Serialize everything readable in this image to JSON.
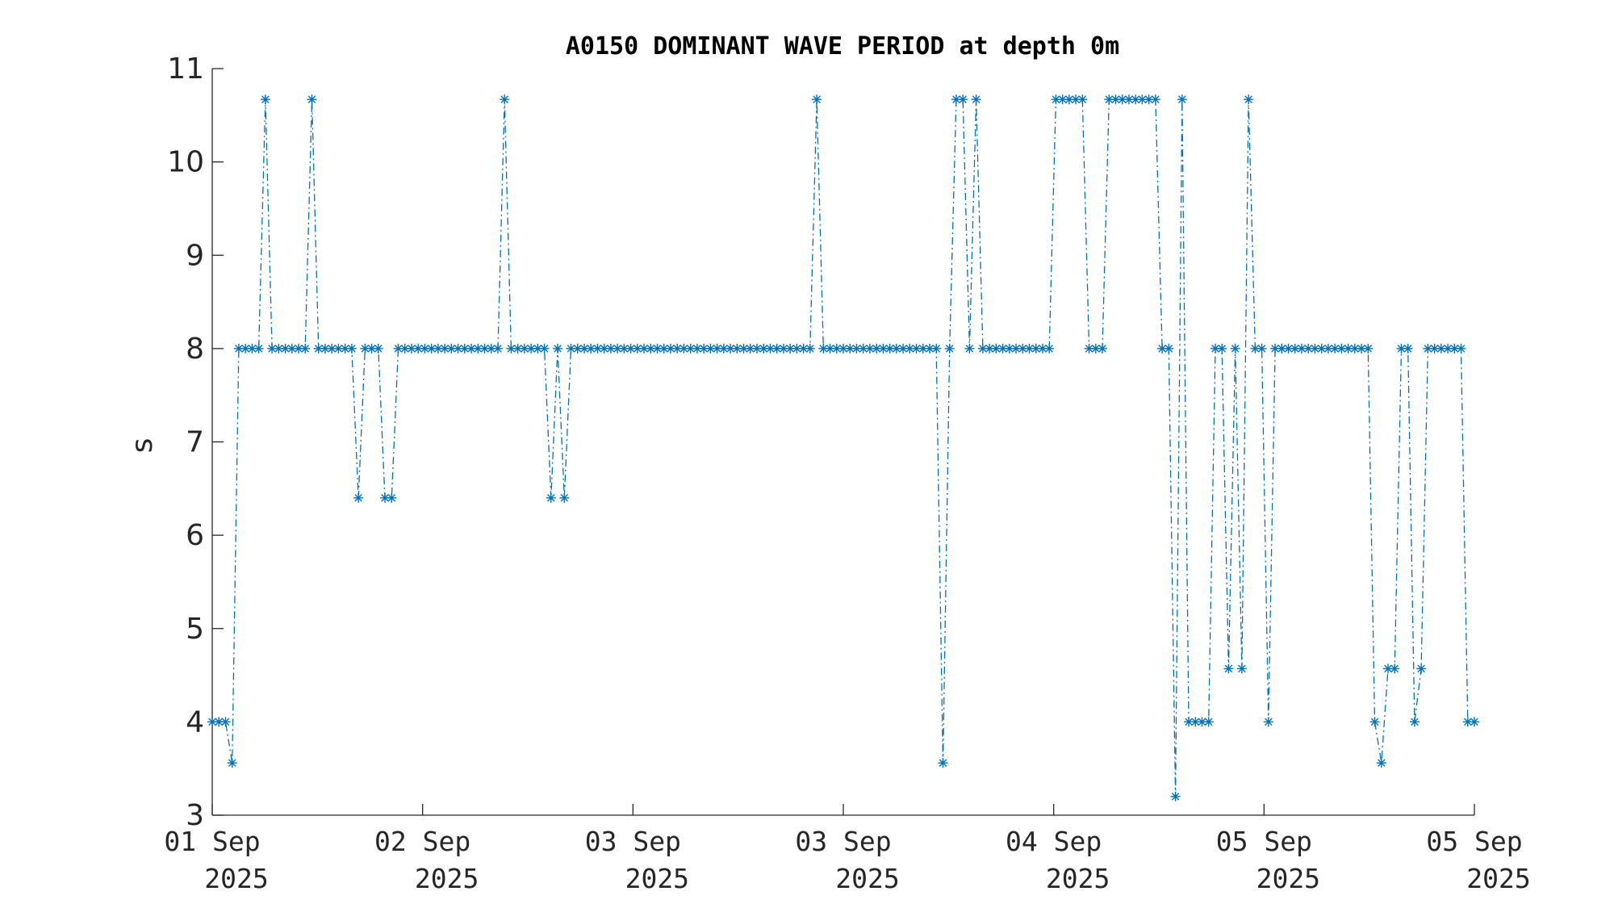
{
  "chart_data": {
    "type": "line",
    "title": "A0150 DOMINANT WAVE PERIOD at depth 0m",
    "ylabel": "s",
    "xlabel": "",
    "ylim": [
      3,
      11
    ],
    "yticks": [
      "3",
      "4",
      "5",
      "6",
      "7",
      "8",
      "9",
      "10",
      "11"
    ],
    "xlim_days": [
      0,
      6
    ],
    "xticks": [
      {
        "date": "01 Sep",
        "year": "2025"
      },
      {
        "date": "02 Sep",
        "year": "2025"
      },
      {
        "date": "03 Sep",
        "year": "2025"
      },
      {
        "date": "03 Sep",
        "year": "2025"
      },
      {
        "date": "04 Sep",
        "year": "2025"
      },
      {
        "date": "05 Sep",
        "year": "2025"
      },
      {
        "date": "05 Sep",
        "year": "2025"
      }
    ],
    "series_color": "#0072bd",
    "grid": false,
    "series": [
      {
        "line_style": "dash-dot",
        "marker": "asterisk",
        "values": [
          4,
          4,
          4,
          3.56,
          8,
          8,
          8,
          8,
          10.67,
          8,
          8,
          8,
          8,
          8,
          8,
          10.67,
          8,
          8,
          8,
          8,
          8,
          8,
          6.4,
          8,
          8,
          8,
          6.4,
          6.4,
          8,
          8,
          8,
          8,
          8,
          8,
          8,
          8,
          8,
          8,
          8,
          8,
          8,
          8,
          8,
          8,
          10.67,
          8,
          8,
          8,
          8,
          8,
          8,
          6.4,
          8,
          6.4,
          8,
          8,
          8,
          8,
          8,
          8,
          8,
          8,
          8,
          8,
          8,
          8,
          8,
          8,
          8,
          8,
          8,
          8,
          8,
          8,
          8,
          8,
          8,
          8,
          8,
          8,
          8,
          8,
          8,
          8,
          8,
          8,
          8,
          8,
          8,
          8,
          8,
          10.67,
          8,
          8,
          8,
          8,
          8,
          8,
          8,
          8,
          8,
          8,
          8,
          8,
          8,
          8,
          8,
          8,
          8,
          8,
          3.56,
          8,
          10.67,
          10.67,
          8,
          10.67,
          8,
          8,
          8,
          8,
          8,
          8,
          8,
          8,
          8,
          8,
          8,
          10.67,
          10.67,
          10.67,
          10.67,
          10.67,
          8,
          8,
          8,
          10.67,
          10.67,
          10.67,
          10.67,
          10.67,
          10.67,
          10.67,
          10.67,
          8,
          8,
          3.2,
          10.67,
          4,
          4,
          4,
          4,
          8,
          8,
          4.57,
          8,
          4.57,
          10.67,
          8,
          8,
          4,
          8,
          8,
          8,
          8,
          8,
          8,
          8,
          8,
          8,
          8,
          8,
          8,
          8,
          8,
          8,
          4,
          3.56,
          4.57,
          4.57,
          8,
          8,
          4,
          4.57,
          8,
          8,
          8,
          8,
          8,
          8,
          4,
          4
        ]
      }
    ]
  }
}
